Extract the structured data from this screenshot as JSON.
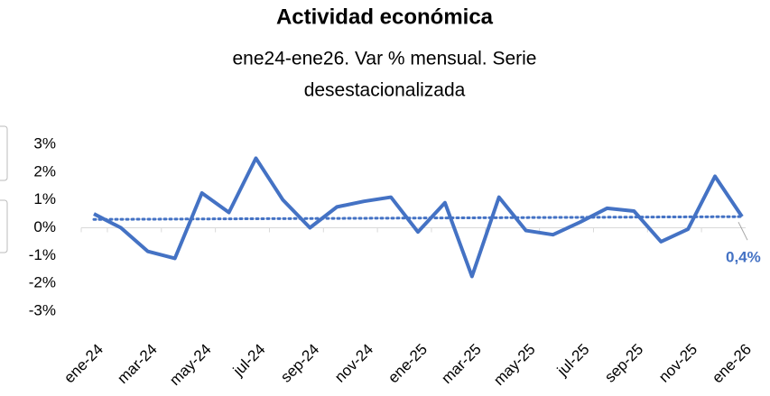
{
  "chart_data": {
    "type": "line",
    "title": "Actividad económica",
    "subtitle": [
      "ene24-ene26. Var % mensual. Serie",
      "desestacionalizada"
    ],
    "categories": [
      "ene-24",
      null,
      "mar-24",
      null,
      "may-24",
      null,
      "jul-24",
      null,
      "sep-24",
      null,
      "nov-24",
      null,
      "ene-25",
      null,
      "mar-25",
      null,
      "may-25",
      null,
      "jul-25",
      null,
      "sep-25",
      null,
      "nov-25",
      null,
      "ene-26"
    ],
    "series": [
      {
        "color": "#4472c4",
        "values": [
          0.5,
          0.0,
          -0.85,
          -1.1,
          1.25,
          0.55,
          2.5,
          1.0,
          0.0,
          0.75,
          0.95,
          1.1,
          -0.15,
          0.9,
          -1.75,
          1.1,
          -0.1,
          -0.25,
          0.2,
          0.7,
          0.6,
          -0.5,
          -0.05,
          1.85,
          0.4
        ],
        "value_labels": [
          null,
          null,
          null,
          null,
          null,
          null,
          null,
          null,
          null,
          null,
          null,
          null,
          null,
          null,
          null,
          null,
          null,
          null,
          null,
          null,
          null,
          null,
          null,
          null,
          "0,4%"
        ]
      }
    ],
    "trend": [
      0.3,
      0.4
    ],
    "ylim": [
      -3,
      3
    ],
    "yticks": [
      {
        "value": -3,
        "label": "-3%"
      },
      {
        "value": -2,
        "label": "-2%"
      },
      {
        "value": -1,
        "label": "-1%"
      },
      {
        "value": 0,
        "label": "0%"
      },
      {
        "value": 1,
        "label": "1%"
      },
      {
        "value": 2,
        "label": "2%"
      },
      {
        "value": 3,
        "label": "3%"
      }
    ]
  }
}
